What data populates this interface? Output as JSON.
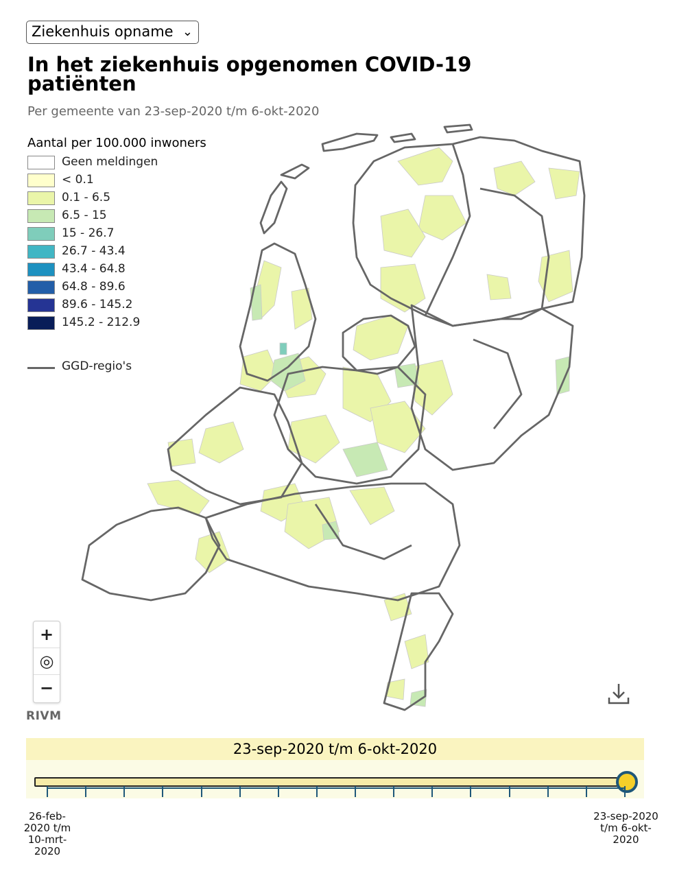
{
  "selector": {
    "value": "Ziekenhuis opname"
  },
  "title": "In het ziekenhuis opgenomen COVID-19 patiënten",
  "subtitle": "Per gemeente van 23-sep-2020 t/m 6-okt-2020",
  "legend": {
    "title": "Aantal per 100.000 inwoners",
    "items": [
      {
        "label": "Geen meldingen",
        "color": "#ffffff"
      },
      {
        "label": "< 0.1",
        "color": "#ffffcc"
      },
      {
        "label": "0.1 - 6.5",
        "color": "#eaf5a9"
      },
      {
        "label": "6.5 - 15",
        "color": "#c7e9b4"
      },
      {
        "label": "15 - 26.7",
        "color": "#7fcdbb"
      },
      {
        "label": "26.7 - 43.4",
        "color": "#41b6c4"
      },
      {
        "label": "43.4 - 64.8",
        "color": "#1d91c0"
      },
      {
        "label": "64.8 - 89.6",
        "color": "#225ea8"
      },
      {
        "label": "89.6 - 145.2",
        "color": "#253494"
      },
      {
        "label": "145.2 - 212.9",
        "color": "#081d58"
      }
    ],
    "ggd_label": "GGD-regio's"
  },
  "zoom": {
    "in": "+",
    "locate": "◎",
    "out": "−"
  },
  "attribution": "RIVM",
  "timeline": {
    "current_period": "23-sep-2020 t/m 6-okt-2020",
    "start_label": "26-feb-2020 t/m 10-mrt-2020",
    "end_label": "23-sep-2020 t/m 6-okt-2020",
    "position": 1.0
  }
}
